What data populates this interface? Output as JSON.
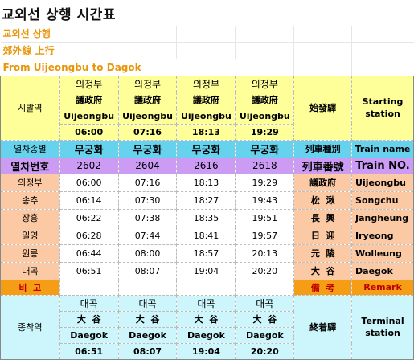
{
  "title": "교외선 상행 시간표",
  "headers": [
    "교외선 상행",
    "郊外線 上行",
    "From Uijeongbu to Dagok"
  ],
  "origin": {
    "label_ko": "시발역",
    "label_hanja": "始發驛",
    "label_en": "Starting station",
    "stations_ko": [
      "의정부",
      "의정부",
      "의정부",
      "의정부"
    ],
    "stations_hanja": [
      "議政府",
      "議政府",
      "議政府",
      "議政府"
    ],
    "stations_en": [
      "Uijeongbu",
      "Uijeongbu",
      "Uijeongbu",
      "Uijeongbu"
    ],
    "times": [
      "06:00",
      "07:16",
      "18:13",
      "19:29"
    ]
  },
  "train_type": {
    "label_ko": "열차종별",
    "label_hanja": "列車種別",
    "label_en": "Train name",
    "values": [
      "무궁화",
      "무궁화",
      "무궁화",
      "무궁화"
    ]
  },
  "train_no": {
    "label_ko": "열차번호",
    "label_hanja": "列車番號",
    "label_en": "Train NO.",
    "values": [
      "2602",
      "2604",
      "2616",
      "2618"
    ]
  },
  "stops": [
    {
      "ko": "의정부",
      "hanja": "議政府",
      "en": "Uijeongbu",
      "times": [
        "06:00",
        "07:16",
        "18:13",
        "19:29"
      ]
    },
    {
      "ko": "송추",
      "hanja": "松  湫",
      "en": "Songchu",
      "times": [
        "06:14",
        "07:30",
        "18:27",
        "19:43"
      ]
    },
    {
      "ko": "장흥",
      "hanja": "長  興",
      "en": "Jangheung",
      "times": [
        "06:22",
        "07:38",
        "18:35",
        "19:51"
      ]
    },
    {
      "ko": "일영",
      "hanja": "日  迎",
      "en": "Iryeong",
      "times": [
        "06:28",
        "07:44",
        "18:41",
        "19:57"
      ]
    },
    {
      "ko": "원릉",
      "hanja": "元  陵",
      "en": "Wolleung",
      "times": [
        "06:44",
        "08:00",
        "18:57",
        "20:13"
      ]
    },
    {
      "ko": "대곡",
      "hanja": "大  谷",
      "en": "Daegok",
      "times": [
        "06:51",
        "08:07",
        "19:04",
        "20:20"
      ]
    }
  ],
  "remark": {
    "label_ko": "비  고",
    "label_hanja": "備  考",
    "label_en": "Remark"
  },
  "terminal": {
    "label_ko": "종착역",
    "label_hanja": "終着驛",
    "label_en": "Terminal station",
    "stations_ko": [
      "대곡",
      "대곡",
      "대곡",
      "대곡"
    ],
    "stations_hanja": [
      "大  谷",
      "大  谷",
      "大  谷",
      "大  谷"
    ],
    "stations_en": [
      "Daegok",
      "Daegok",
      "Daegok",
      "Daegok"
    ],
    "times": [
      "06:51",
      "08:07",
      "19:04",
      "20:20"
    ]
  },
  "colors": {
    "origin_bg": "#ffff9a",
    "train_type_bg": "#66d2ee",
    "train_no_bg": "#cc9cf5",
    "stops_bg": "#fbc9a3",
    "remark_bg": "#f59d14",
    "terminal_bg": "#ccf6fb",
    "header_text": "#e8960a"
  }
}
